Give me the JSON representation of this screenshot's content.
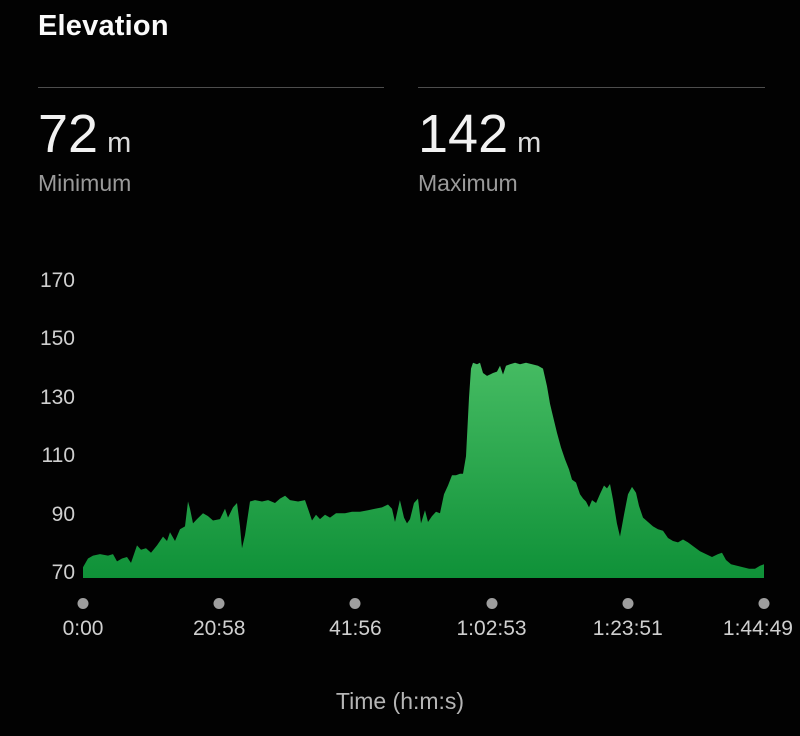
{
  "title": "Elevation",
  "stats": [
    {
      "value": "72",
      "unit": "m",
      "label": "Minimum"
    },
    {
      "value": "142",
      "unit": "m",
      "label": "Maximum"
    }
  ],
  "colors": {
    "background": "#020202",
    "title_text": "#fafafa",
    "stat_value": "#f2f2f2",
    "stat_label": "#9a9a9a",
    "axis_text": "#cfcfcf",
    "divider": "#4d4d4d",
    "axis_dot": "#9e9e9e",
    "area_top": "#45bb62",
    "area_bottom": "#0f9138"
  },
  "chart_data": {
    "type": "area",
    "title": "Elevation",
    "xlabel": "Time (h:m:s)",
    "ylabel": "",
    "legend": "none",
    "grid": false,
    "ylim": [
      70,
      170
    ],
    "xlim_seconds": [
      0,
      6289
    ],
    "y_ticks": [
      170,
      150,
      130,
      110,
      90,
      70
    ],
    "x_ticks": [
      "0:00",
      "20:58",
      "41:56",
      "1:02:53",
      "1:23:51",
      "1:44:49"
    ],
    "x_tick_seconds": [
      0,
      1258,
      2516,
      3773,
      5031,
      6289
    ],
    "min_elevation_m": 72,
    "max_elevation_m": 142,
    "series": [
      {
        "name": "elevation_m_vs_time_s",
        "points": [
          [
            0,
            72
          ],
          [
            46,
            75
          ],
          [
            92,
            76
          ],
          [
            157,
            76.5
          ],
          [
            231,
            76
          ],
          [
            277,
            76.5
          ],
          [
            314,
            74
          ],
          [
            360,
            75
          ],
          [
            406,
            75.5
          ],
          [
            443,
            73.5
          ],
          [
            499,
            79.5
          ],
          [
            536,
            78
          ],
          [
            582,
            78.5
          ],
          [
            628,
            77
          ],
          [
            683,
            79.5
          ],
          [
            739,
            82.5
          ],
          [
            776,
            81
          ],
          [
            803,
            84
          ],
          [
            850,
            81
          ],
          [
            896,
            85
          ],
          [
            942,
            86
          ],
          [
            970,
            94.5
          ],
          [
            988,
            92
          ],
          [
            1016,
            87
          ],
          [
            1053,
            88.5
          ],
          [
            1108,
            90.5
          ],
          [
            1154,
            89.5
          ],
          [
            1201,
            88
          ],
          [
            1265,
            88.5
          ],
          [
            1311,
            92
          ],
          [
            1339,
            89
          ],
          [
            1385,
            92.5
          ],
          [
            1422,
            94
          ],
          [
            1450,
            86
          ],
          [
            1468,
            78.5
          ],
          [
            1496,
            83
          ],
          [
            1542,
            94.5
          ],
          [
            1588,
            95
          ],
          [
            1653,
            94.5
          ],
          [
            1709,
            95
          ],
          [
            1773,
            94
          ],
          [
            1819,
            95.5
          ],
          [
            1866,
            96.5
          ],
          [
            1912,
            95
          ],
          [
            1986,
            94.5
          ],
          [
            2050,
            95
          ],
          [
            2078,
            92
          ],
          [
            2115,
            88
          ],
          [
            2152,
            90
          ],
          [
            2189,
            88.5
          ],
          [
            2235,
            90
          ],
          [
            2281,
            89
          ],
          [
            2336,
            90.5
          ],
          [
            2420,
            90.5
          ],
          [
            2484,
            91
          ],
          [
            2558,
            91
          ],
          [
            2632,
            91.5
          ],
          [
            2697,
            92
          ],
          [
            2761,
            92.5
          ],
          [
            2817,
            93.5
          ],
          [
            2854,
            92
          ],
          [
            2881,
            87.5
          ],
          [
            2927,
            95
          ],
          [
            2964,
            89
          ],
          [
            2992,
            87
          ],
          [
            3020,
            88.5
          ],
          [
            3057,
            94
          ],
          [
            3094,
            95.5
          ],
          [
            3121,
            87
          ],
          [
            3158,
            91.5
          ],
          [
            3186,
            87.5
          ],
          [
            3223,
            89.5
          ],
          [
            3260,
            91
          ],
          [
            3297,
            90.5
          ],
          [
            3334,
            97
          ],
          [
            3371,
            100
          ],
          [
            3408,
            103.5
          ],
          [
            3445,
            103.5
          ],
          [
            3482,
            104
          ],
          [
            3509,
            104
          ],
          [
            3537,
            110
          ],
          [
            3565,
            130
          ],
          [
            3583,
            140
          ],
          [
            3602,
            142
          ],
          [
            3639,
            141.5
          ],
          [
            3666,
            142
          ],
          [
            3694,
            138.5
          ],
          [
            3731,
            137.5
          ],
          [
            3759,
            138
          ],
          [
            3786,
            138.5
          ],
          [
            3823,
            139
          ],
          [
            3851,
            141
          ],
          [
            3879,
            138
          ],
          [
            3906,
            141
          ],
          [
            3943,
            141.5
          ],
          [
            3990,
            142
          ],
          [
            4036,
            141.5
          ],
          [
            4091,
            142
          ],
          [
            4147,
            141.5
          ],
          [
            4202,
            141
          ],
          [
            4248,
            140
          ],
          [
            4285,
            134
          ],
          [
            4313,
            128
          ],
          [
            4341,
            123.5
          ],
          [
            4377,
            118
          ],
          [
            4414,
            113
          ],
          [
            4451,
            109
          ],
          [
            4488,
            105.5
          ],
          [
            4516,
            102
          ],
          [
            4553,
            101
          ],
          [
            4590,
            97
          ],
          [
            4618,
            95.5
          ],
          [
            4645,
            94.5
          ],
          [
            4673,
            92.5
          ],
          [
            4701,
            95
          ],
          [
            4738,
            94
          ],
          [
            4774,
            97
          ],
          [
            4811,
            100
          ],
          [
            4839,
            99
          ],
          [
            4867,
            100.5
          ],
          [
            4895,
            95
          ],
          [
            4931,
            87
          ],
          [
            4959,
            82.5
          ],
          [
            4996,
            90
          ],
          [
            5033,
            97
          ],
          [
            5070,
            99.5
          ],
          [
            5107,
            97.5
          ],
          [
            5135,
            93
          ],
          [
            5172,
            89
          ],
          [
            5218,
            87.5
          ],
          [
            5264,
            86
          ],
          [
            5310,
            85
          ],
          [
            5356,
            84.5
          ],
          [
            5402,
            82
          ],
          [
            5449,
            81
          ],
          [
            5495,
            80.5
          ],
          [
            5541,
            81.5
          ],
          [
            5587,
            80.5
          ],
          [
            5642,
            79
          ],
          [
            5698,
            77.5
          ],
          [
            5753,
            76.5
          ],
          [
            5809,
            75.5
          ],
          [
            5864,
            76.5
          ],
          [
            5901,
            77
          ],
          [
            5938,
            74.5
          ],
          [
            5984,
            73
          ],
          [
            6040,
            72.5
          ],
          [
            6095,
            72
          ],
          [
            6151,
            71.5
          ],
          [
            6206,
            71.5
          ],
          [
            6252,
            72.5
          ],
          [
            6289,
            73
          ]
        ]
      }
    ]
  }
}
